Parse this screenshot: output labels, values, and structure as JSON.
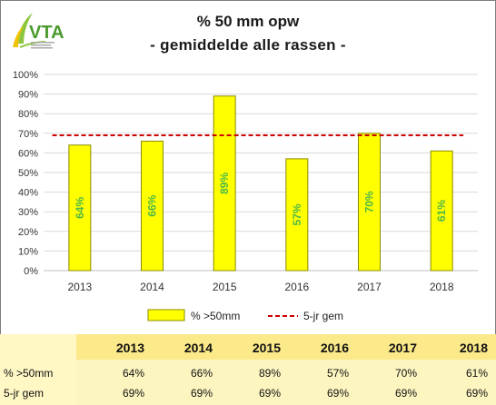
{
  "logo": {
    "text": "VTA",
    "icon": "wheat-leaf-logo"
  },
  "chart_data": {
    "type": "bar",
    "title": "% 50 mm opw",
    "subtitle": "- gemiddelde alle rassen -",
    "categories": [
      "2013",
      "2014",
      "2015",
      "2016",
      "2017",
      "2018"
    ],
    "series": [
      {
        "name": "% >50mm",
        "type": "bar",
        "values": [
          64,
          66,
          89,
          57,
          70,
          61
        ],
        "labels": [
          "64%",
          "66%",
          "89%",
          "57%",
          "70%",
          "61%"
        ]
      },
      {
        "name": "5-jr gem",
        "type": "line",
        "values": [
          69,
          69,
          69,
          69,
          69,
          69
        ]
      }
    ],
    "ylim": [
      0,
      100
    ],
    "yticks": [
      "0%",
      "10%",
      "20%",
      "30%",
      "40%",
      "50%",
      "60%",
      "70%",
      "80%",
      "90%",
      "100%"
    ],
    "grid": true,
    "legend": "bottom",
    "colors": {
      "bar": "#ffff00",
      "bar_border": "#8c8c00",
      "label": "#4db848",
      "line": "#cc0000",
      "grid": "#d9d9d9"
    }
  },
  "table": {
    "years": [
      "2013",
      "2014",
      "2015",
      "2016",
      "2017",
      "2018"
    ],
    "rows": [
      {
        "label": "% >50mm",
        "values": [
          "64%",
          "66%",
          "89%",
          "57%",
          "70%",
          "61%"
        ]
      },
      {
        "label": "5-jr gem",
        "values": [
          "69%",
          "69%",
          "69%",
          "69%",
          "69%",
          "69%"
        ]
      }
    ]
  }
}
